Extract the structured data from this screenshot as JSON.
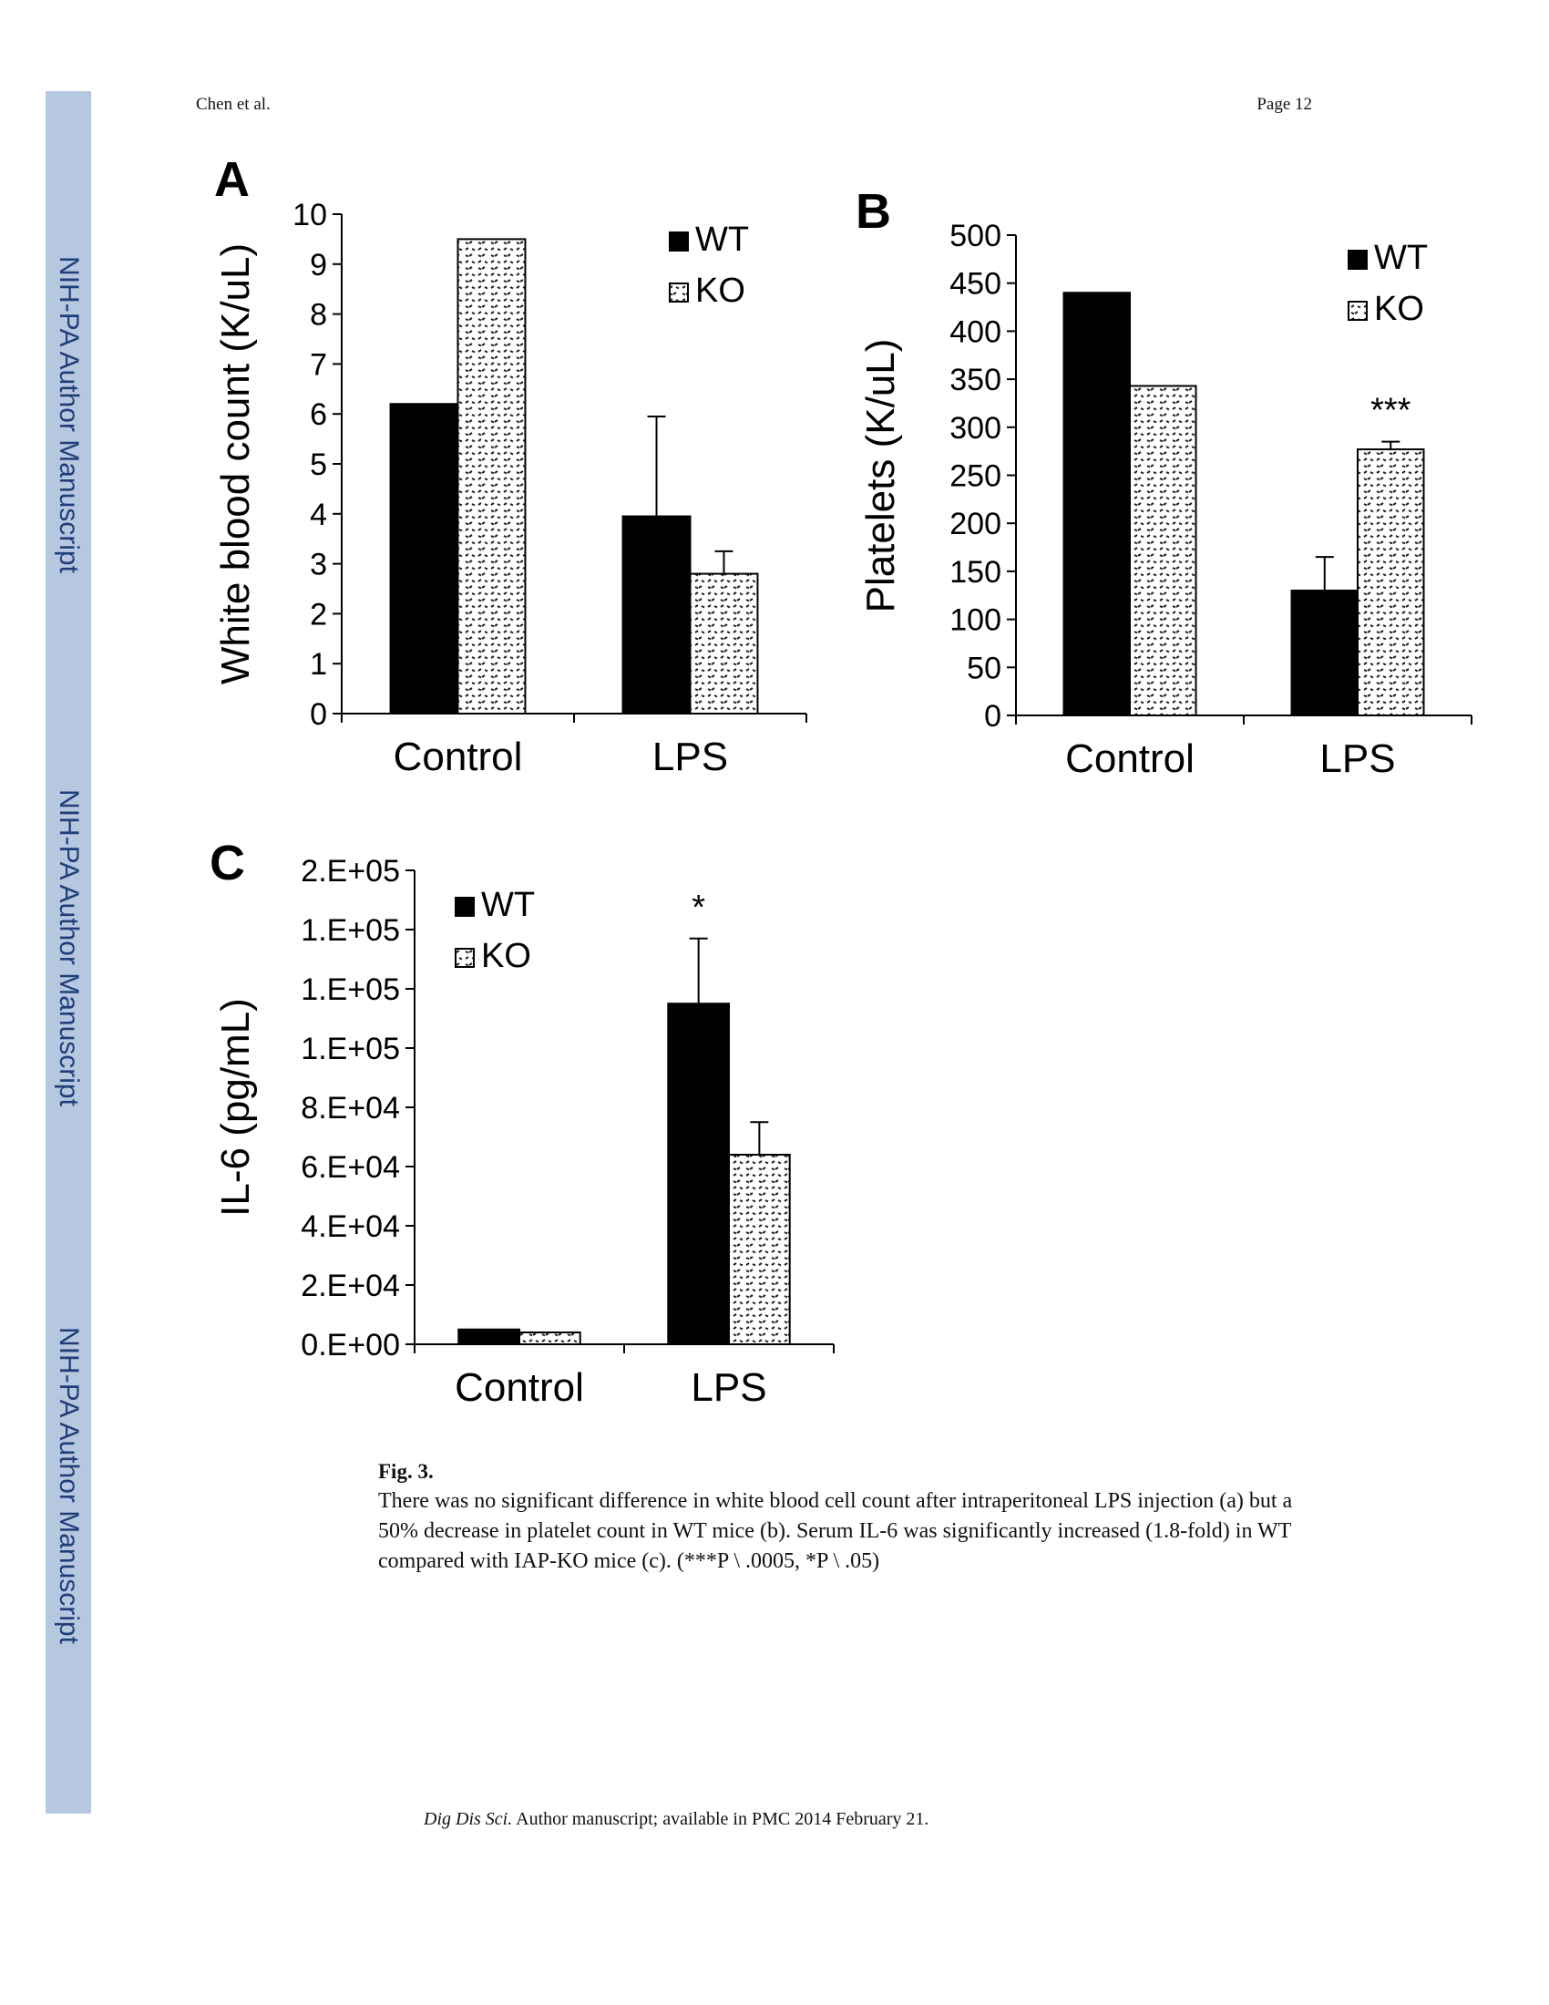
{
  "header": {
    "left": "Chen et al.",
    "right": "Page 12"
  },
  "sidebar": {
    "label": "NIH-PA Author Manuscript",
    "color": "#b6c7e0",
    "text_color": "#1f3f7a"
  },
  "chart_data": [
    {
      "type": "bar",
      "panel": "A",
      "ylabel": "White blood count (K/uL)",
      "categories": [
        "Control",
        "LPS"
      ],
      "ylim": [
        0,
        10
      ],
      "yticks": [
        "0",
        "1",
        "2",
        "3",
        "4",
        "5",
        "6",
        "7",
        "8",
        "9",
        "10"
      ],
      "series": [
        {
          "name": "WT",
          "values": [
            6.2,
            3.95
          ],
          "errors": [
            null,
            2.0
          ]
        },
        {
          "name": "KO",
          "values": [
            9.5,
            2.8
          ],
          "errors": [
            null,
            0.45
          ]
        }
      ],
      "annotations": [],
      "legend": "top-right"
    },
    {
      "type": "bar",
      "panel": "B",
      "ylabel": "Platelets (K/uL)",
      "categories": [
        "Control",
        "LPS"
      ],
      "ylim": [
        0,
        500
      ],
      "yticks": [
        "0",
        "50",
        "100",
        "150",
        "200",
        "250",
        "300",
        "350",
        "400",
        "450",
        "500"
      ],
      "series": [
        {
          "name": "WT",
          "values": [
            440,
            130
          ],
          "errors": [
            null,
            35
          ]
        },
        {
          "name": "KO",
          "values": [
            343,
            277
          ],
          "errors": [
            null,
            8
          ]
        }
      ],
      "annotations": [
        {
          "text": "***",
          "category": 1
        }
      ],
      "legend": "top-right"
    },
    {
      "type": "bar",
      "panel": "C",
      "ylabel": "IL-6 (pg/mL)",
      "categories": [
        "Control",
        "LPS"
      ],
      "ylim": [
        0,
        160000
      ],
      "yticks": [
        "0.E+00",
        "2.E+04",
        "4.E+04",
        "6.E+04",
        "8.E+04",
        "1.E+05",
        "1.E+05",
        "1.E+05",
        "2.E+05"
      ],
      "series": [
        {
          "name": "WT",
          "values": [
            5000,
            115000
          ],
          "errors": [
            null,
            22000
          ]
        },
        {
          "name": "KO",
          "values": [
            4000,
            64000
          ],
          "errors": [
            null,
            11000
          ]
        }
      ],
      "annotations": [
        {
          "text": "*",
          "category": 1
        }
      ],
      "legend": "top-left"
    }
  ],
  "caption": {
    "label": "Fig. 3.",
    "text": "There was no significant difference in white blood cell count after intraperitoneal LPS injection (a) but a 50% decrease in platelet count in WT mice (b). Serum IL-6 was significantly increased (1.8-fold) in WT compared with IAP-KO mice (c). (***P \\ .0005, *P \\ .05)"
  },
  "footer": {
    "journal": "Dig Dis Sci.",
    "text": "Author manuscript; available in PMC 2014 February 21."
  }
}
